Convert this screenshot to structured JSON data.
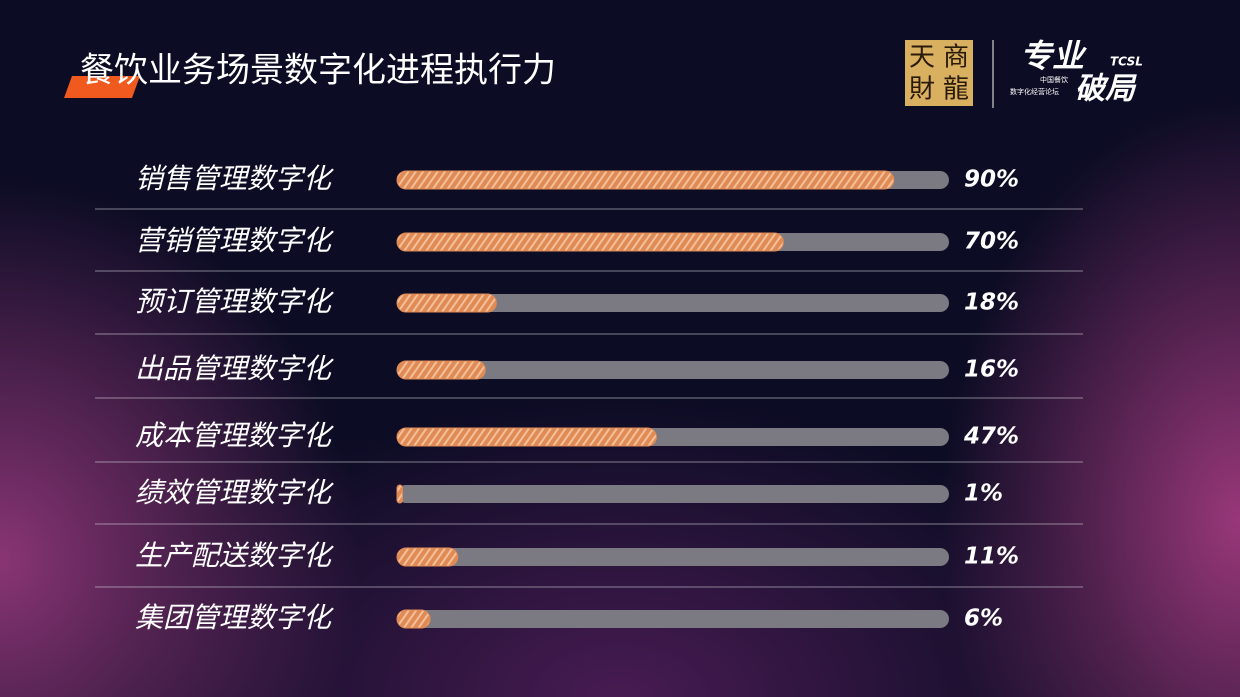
{
  "chart_data": {
    "type": "bar",
    "title": "餐饮业务场景数字化进程执行力",
    "categories": [
      "销售管理数字化",
      "营销管理数字化",
      "预订管理数字化",
      "出品管理数字化",
      "成本管理数字化",
      "绩效管理数字化",
      "生产配送数字化",
      "集团管理数字化"
    ],
    "values": [
      90,
      70,
      18,
      16,
      47,
      1,
      11,
      6
    ],
    "value_labels": [
      "90%",
      "70%",
      "18%",
      "16%",
      "47%",
      "1%",
      "11%",
      "6%"
    ],
    "xlim": [
      0,
      100
    ],
    "color": "#e08a55"
  },
  "logo": {
    "chars": [
      "天",
      "商",
      "財",
      "龍"
    ],
    "main": "专业",
    "sub": "破局",
    "brand": "TCSL",
    "line1": "中国餐饮",
    "line2": "数字化经营论坛"
  }
}
